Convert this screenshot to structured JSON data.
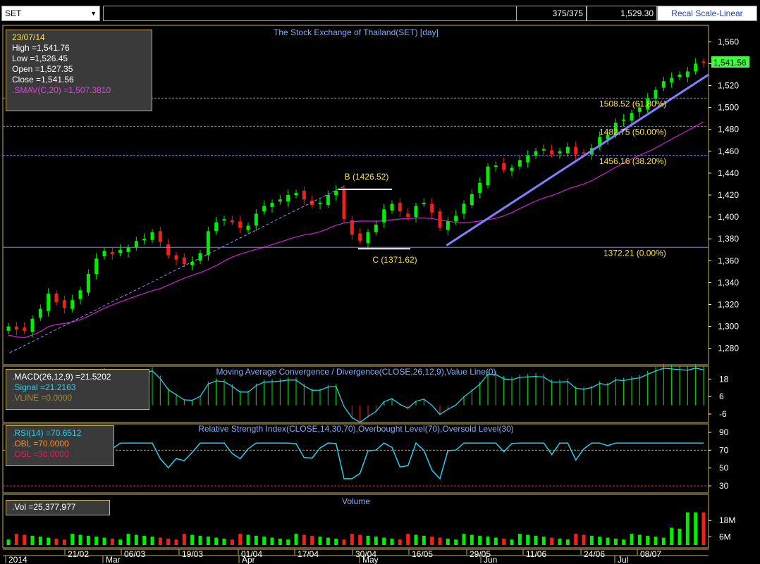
{
  "toolbar": {
    "symbol": "SET",
    "count": "375/375",
    "last": "1,529.30",
    "recal_label": "Recal Scale-Linear"
  },
  "info_box": {
    "date": "23/07/14",
    "high": "High  =1,541.76",
    "low": "Low  =1,526.45",
    "open": "Open  =1,527.35",
    "close": "Close  =1,541.56",
    "smav": ".SMAV(C,20)  =1,507.3810"
  },
  "macd_box": {
    "macd": ".MACD(26,12,9)  =21.5202",
    "signal": ".Signal  =21.2163",
    "vline": ".VLINE  =0.0000"
  },
  "rsi_box": {
    "rsi": ".RSI(14)  =70.6512",
    "obl": ".OBL  =70.0000",
    "osl": ".OSL  =30.0000"
  },
  "vol_box": {
    "vol": ".Vol  =25,377,977"
  },
  "colors": {
    "up": "#00ee00",
    "down": "#ee2020",
    "sma": "#d020d0",
    "trend": "#8080ff",
    "fib": "#ffe040",
    "rsi": "#20d0f0",
    "grid": "#c8b060"
  },
  "chart_data": [
    {
      "type": "candlestick",
      "title": "The Stock Exchange of Thailand(SET) [day]",
      "ylim": [
        1265,
        1575
      ],
      "yticks": [
        1280,
        1300,
        1320,
        1340,
        1360,
        1380,
        1400,
        1420,
        1440,
        1460,
        1480,
        1500,
        1520,
        1540,
        1560
      ],
      "last_price_label": "1,541.56",
      "fib_levels": [
        {
          "value": 1508.52,
          "label": "1508.52 (61.80%)"
        },
        {
          "value": 1482.75,
          "label": "1482.75 (50.00%)"
        },
        {
          "value": 1456.16,
          "label": "1456.16 (38.20%)"
        },
        {
          "value": 1372.21,
          "label": "1372.21 (0.00%)"
        }
      ],
      "annotations": [
        {
          "text": "B (1426.52)",
          "value": 1426.52
        },
        {
          "text": "C (1371.62)",
          "value": 1371.62
        }
      ],
      "x_labels": [
        "21/02",
        "06/03",
        "19/03",
        "01/04",
        "17/04",
        "30/04",
        "16/05",
        "29/05",
        "11/06",
        "24/06",
        "08/07"
      ],
      "month_labels": [
        "2014",
        "Mar",
        "Apr",
        "May",
        "Jun",
        "Jul"
      ],
      "close": [
        1300,
        1297,
        1296,
        1307,
        1316,
        1330,
        1322,
        1317,
        1324,
        1333,
        1348,
        1362,
        1369,
        1366,
        1370,
        1372,
        1378,
        1380,
        1386,
        1377,
        1365,
        1361,
        1357,
        1359,
        1367,
        1387,
        1395,
        1398,
        1395,
        1390,
        1392,
        1403,
        1410,
        1413,
        1416,
        1420,
        1422,
        1416,
        1411,
        1413,
        1420,
        1424,
        1398,
        1384,
        1378,
        1386,
        1393,
        1407,
        1412,
        1405,
        1400,
        1410,
        1413,
        1404,
        1390,
        1396,
        1401,
        1412,
        1421,
        1431,
        1446,
        1447,
        1443,
        1445,
        1452,
        1456,
        1460,
        1462,
        1457,
        1460,
        1464,
        1457,
        1458,
        1463,
        1473,
        1475,
        1486,
        1489,
        1495,
        1500,
        1508,
        1516,
        1524,
        1527,
        1530,
        1533,
        1540,
        1541.56
      ],
      "sma20_note": "SMAV(C,20)"
    },
    {
      "type": "bar+line",
      "title": "Moving Average Convergence / Divergence(CLOSE,26,12,9),Value Line(0)",
      "yticks": [
        18,
        6,
        -6
      ]
    },
    {
      "type": "line",
      "title": "Relative Strength Index(CLOSE,14,30,70),Overbought Level(70),Oversold Level(30)",
      "yticks": [
        90,
        70,
        50,
        30
      ],
      "levels": [
        70,
        30
      ]
    },
    {
      "type": "bar",
      "title": "Volume",
      "yticks": [
        "18M",
        "6M"
      ]
    }
  ]
}
